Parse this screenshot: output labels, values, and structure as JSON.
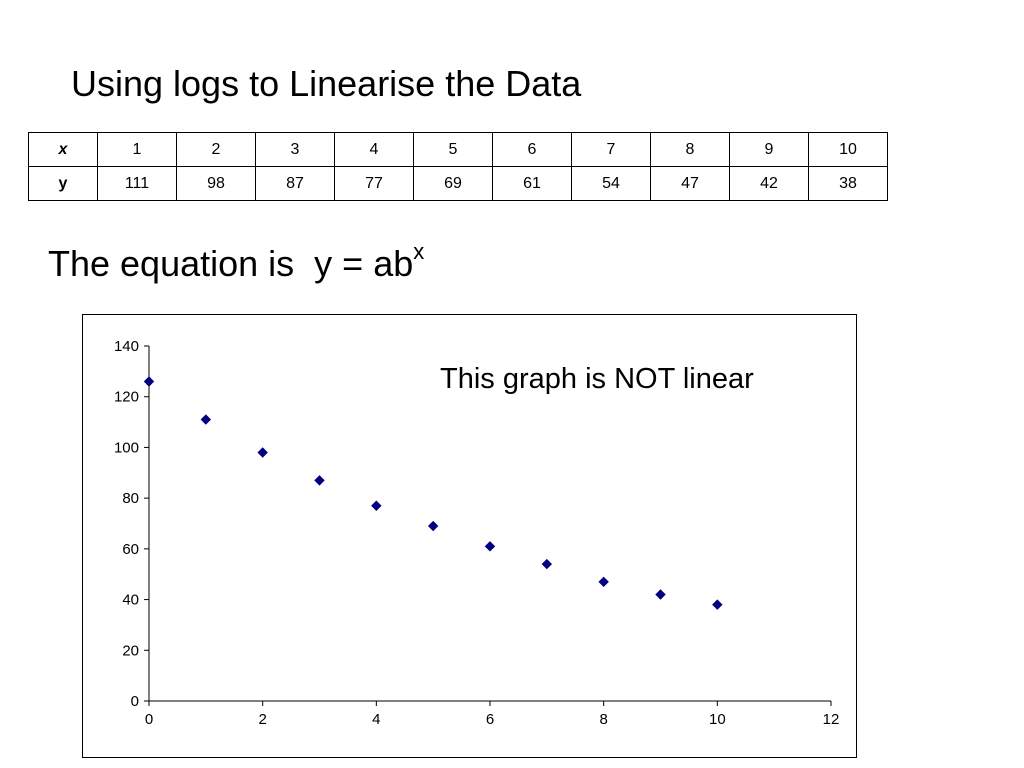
{
  "title": "Using logs to Linearise the Data",
  "table": {
    "x_label": "x",
    "y_label": "y",
    "x_values": [
      "1",
      "2",
      "3",
      "4",
      "5",
      "6",
      "7",
      "8",
      "9",
      "10"
    ],
    "y_values": [
      "111",
      "98",
      "87",
      "77",
      "69",
      "61",
      "54",
      "47",
      "42",
      "38"
    ]
  },
  "equation": {
    "text": "The equation is  y = ab",
    "superscript": "x"
  },
  "chart_data": {
    "type": "scatter",
    "x": [
      0,
      1,
      2,
      3,
      4,
      5,
      6,
      7,
      8,
      9,
      10
    ],
    "y": [
      126,
      111,
      98,
      87,
      77,
      69,
      61,
      54,
      47,
      42,
      38
    ],
    "xlim": [
      0,
      12
    ],
    "ylim": [
      0,
      140
    ],
    "x_ticks": [
      0,
      2,
      4,
      6,
      8,
      10,
      12
    ],
    "y_ticks": [
      0,
      20,
      40,
      60,
      80,
      100,
      120,
      140
    ],
    "grid": false,
    "legend": "none",
    "marker": "diamond",
    "marker_color": "#000080",
    "annotation": "This graph is NOT linear"
  }
}
